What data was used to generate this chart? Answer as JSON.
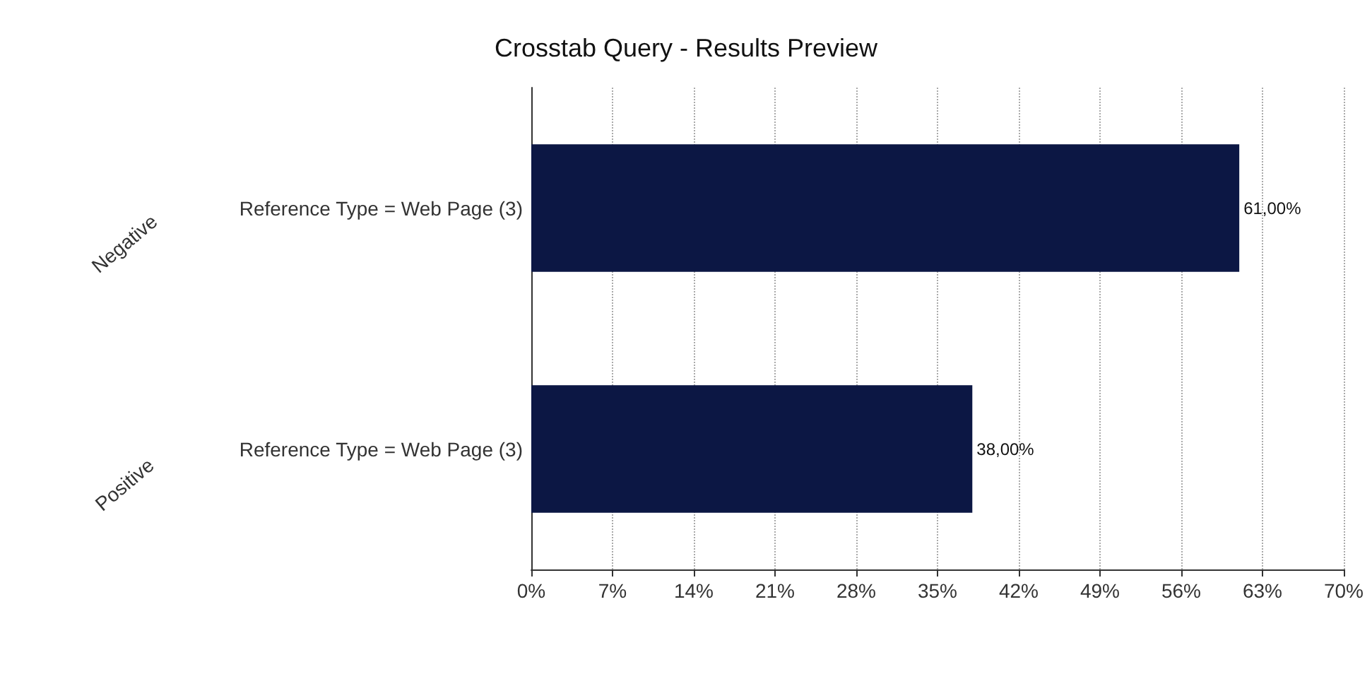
{
  "chart_data": {
    "type": "bar",
    "orientation": "horizontal",
    "title": "Crosstab Query - Results Preview",
    "categories": [
      "Reference Type = Web Page (3)",
      "Reference Type = Web Page (3)"
    ],
    "values": [
      61,
      38
    ],
    "value_labels": [
      "61,00%",
      "38,00%"
    ],
    "color": "#0c1744",
    "annotations": [
      "Negative",
      "Positive"
    ],
    "xlim": [
      0,
      70
    ],
    "xticks": [
      {
        "value": 0,
        "label": "0%"
      },
      {
        "value": 7,
        "label": "7%"
      },
      {
        "value": 14,
        "label": "14%"
      },
      {
        "value": 21,
        "label": "21%"
      },
      {
        "value": 28,
        "label": "28%"
      },
      {
        "value": 35,
        "label": "35%"
      },
      {
        "value": 42,
        "label": "42%"
      },
      {
        "value": 49,
        "label": "49%"
      },
      {
        "value": 56,
        "label": "56%"
      },
      {
        "value": 63,
        "label": "63%"
      },
      {
        "value": 70,
        "label": "70%"
      }
    ],
    "grid": "x"
  }
}
